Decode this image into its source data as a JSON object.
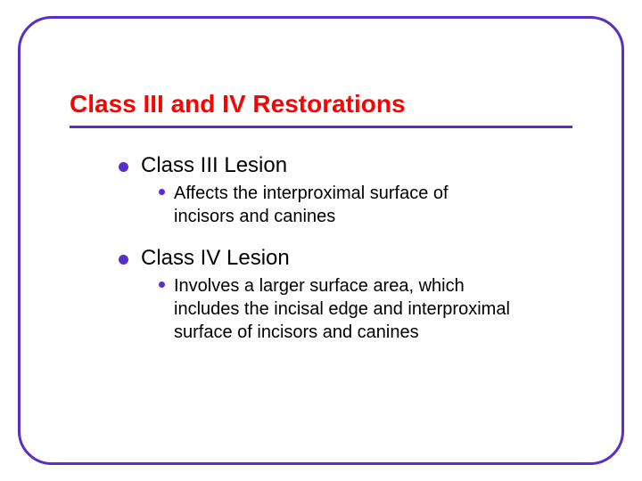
{
  "slide": {
    "title": "Class III and IV Restorations",
    "title_color": "#ff0000",
    "title_fontsize": 28,
    "border_color": "#5a2ec7",
    "border_width": 3,
    "border_radius": 38,
    "background_color": "#ffffff",
    "bullet_color": "#5a2ec7",
    "text_color": "#000000",
    "font_family": "Verdana",
    "items": [
      {
        "label": "Class III Lesion",
        "fontsize": 24,
        "sub": {
          "text": "Affects the interproximal surface of incisors and canines",
          "fontsize": 20
        }
      },
      {
        "label": "Class IV Lesion",
        "fontsize": 24,
        "sub": {
          "text": "Involves a larger surface area, which includes the incisal edge and interproximal surface of incisors and canines",
          "fontsize": 20
        }
      }
    ]
  }
}
